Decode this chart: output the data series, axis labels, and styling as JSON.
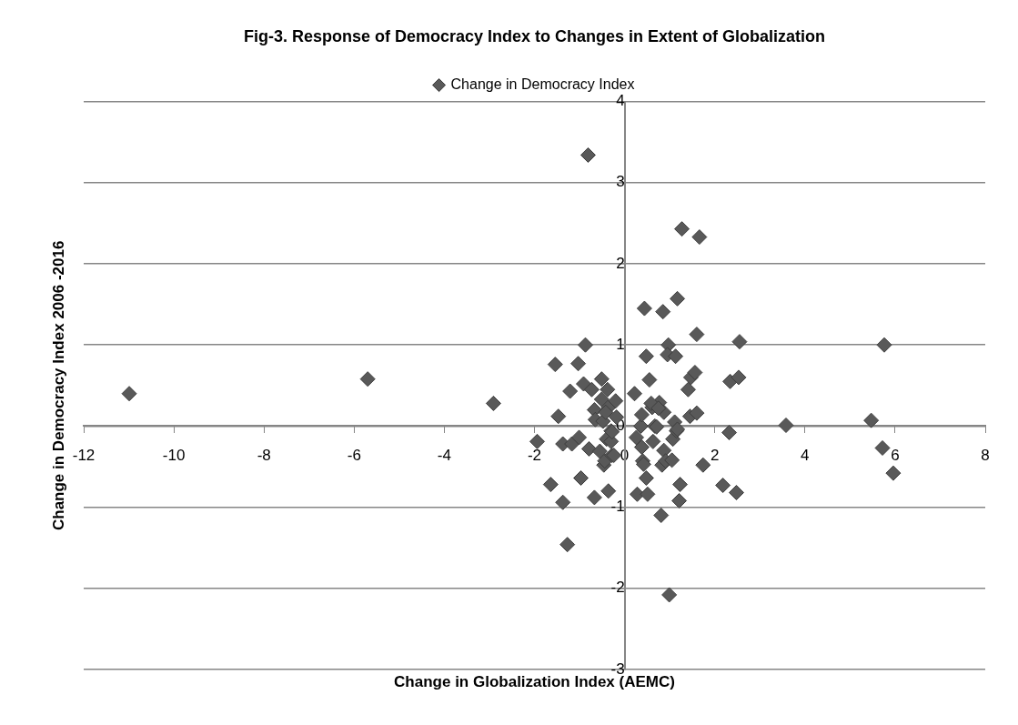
{
  "chart_data": {
    "type": "scatter",
    "title": "Fig-3. Response of Democracy Index to Changes in Extent of Globalization",
    "xlabel": "Change in Globalization Index (AEMC)",
    "ylabel": "Change in Democracy Index 2006 -2016",
    "xlim": [
      -12,
      8
    ],
    "xticks": [
      -12,
      -10,
      -8,
      -6,
      -4,
      -2,
      0,
      2,
      4,
      6,
      8
    ],
    "ylim": [
      -3,
      4
    ],
    "yticks": [
      -3,
      -2,
      -1,
      0,
      1,
      2,
      3,
      4
    ],
    "grid": "y",
    "legend": "top",
    "marker": "diamond",
    "series": [
      {
        "name": "Change in Democracy Index",
        "color": "#595959",
        "x": [
          -10.99,
          -5.7,
          -2.91,
          -1.94,
          -1.54,
          -1.47,
          -1.64,
          -1.37,
          -1.37,
          -1.27,
          -1.21,
          -1.17,
          -1.03,
          -1.01,
          -0.97,
          -0.87,
          -0.91,
          -0.79,
          -0.73,
          -0.67,
          -0.67,
          -0.65,
          -0.55,
          -0.51,
          -0.51,
          -0.46,
          -0.44,
          -0.4,
          -0.38,
          -0.36,
          -0.36,
          -0.3,
          -0.3,
          -0.28,
          -0.28,
          -0.24,
          -0.2,
          -0.18,
          -0.81,
          0.22,
          0.26,
          0.28,
          0.36,
          0.38,
          0.38,
          0.4,
          0.42,
          0.44,
          0.48,
          0.48,
          0.51,
          0.55,
          0.61,
          0.63,
          0.67,
          0.71,
          0.77,
          0.81,
          0.83,
          0.85,
          0.87,
          0.87,
          0.91,
          0.97,
          0.95,
          0.99,
          1.05,
          1.07,
          1.11,
          1.13,
          1.15,
          1.17,
          1.17,
          1.23,
          1.21,
          1.27,
          1.41,
          1.45,
          1.47,
          1.56,
          1.6,
          1.6,
          1.66,
          1.74,
          2.18,
          2.48,
          2.32,
          2.34,
          2.53,
          2.55,
          3.58,
          5.47,
          5.72,
          5.96,
          5.76,
          -0.48,
          -0.42,
          0.59,
          0.75
        ],
        "values": [
          0.4,
          0.58,
          0.28,
          -0.19,
          0.76,
          0.12,
          -0.72,
          -0.22,
          -0.94,
          -1.46,
          0.43,
          -0.22,
          0.77,
          -0.14,
          -0.64,
          1.0,
          0.52,
          -0.28,
          0.45,
          -0.88,
          0.2,
          0.08,
          -0.31,
          0.58,
          0.33,
          -0.48,
          -0.43,
          -0.16,
          0.45,
          0.23,
          -0.8,
          -0.06,
          -0.19,
          -0.36,
          -0.07,
          -0.36,
          0.31,
          0.11,
          3.34,
          0.4,
          -0.14,
          -0.84,
          0.0,
          0.14,
          -0.26,
          -0.43,
          -0.47,
          1.45,
          0.86,
          -0.64,
          -0.84,
          0.57,
          0.23,
          -0.19,
          0.0,
          -0.01,
          0.29,
          -1.1,
          -0.48,
          1.41,
          0.17,
          -0.3,
          -0.43,
          1.0,
          0.88,
          -2.08,
          -0.42,
          -0.16,
          0.05,
          0.86,
          -0.06,
          1.57,
          -0.04,
          -0.72,
          -0.92,
          2.43,
          0.45,
          0.12,
          0.6,
          0.66,
          1.13,
          0.16,
          2.33,
          -0.48,
          -0.73,
          -0.82,
          -0.08,
          0.55,
          0.6,
          1.04,
          0.01,
          0.07,
          -0.27,
          -0.58,
          1.0,
          0.06,
          0.17,
          0.28,
          0.22
        ]
      }
    ]
  }
}
